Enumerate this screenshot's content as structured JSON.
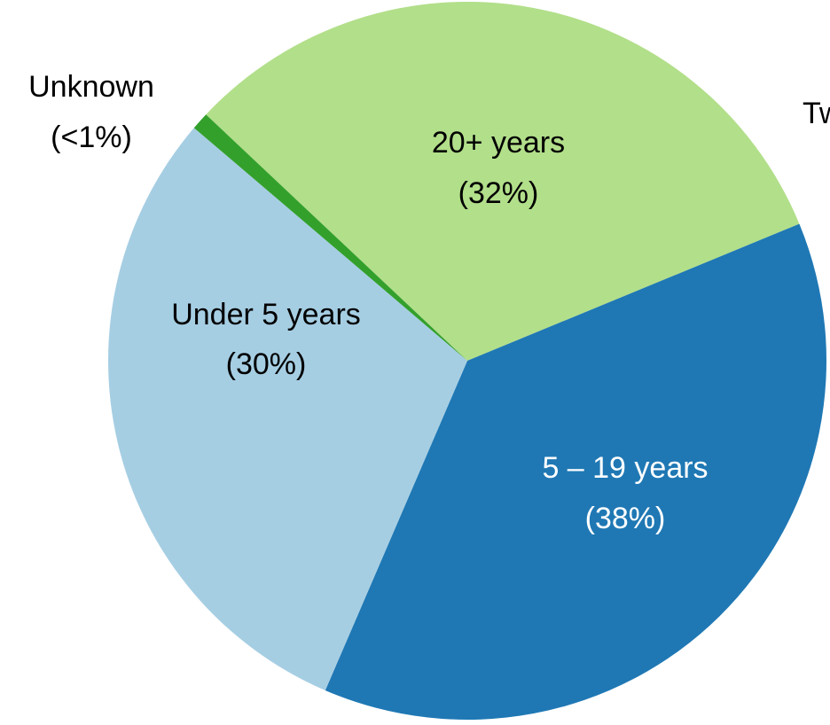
{
  "chart_data": {
    "type": "pie",
    "categories": [
      "20+ years",
      "5 – 19 years",
      "Under 5 years",
      "Unknown"
    ],
    "values": [
      32,
      38,
      30,
      0.8
    ],
    "value_labels": [
      "(32%)",
      "(38%)",
      "(30%)",
      "(<1%)"
    ],
    "colors": [
      "#b2df8a",
      "#1f78b4",
      "#a6cee3",
      "#33a02c"
    ],
    "annotations": [
      "Tw"
    ]
  }
}
